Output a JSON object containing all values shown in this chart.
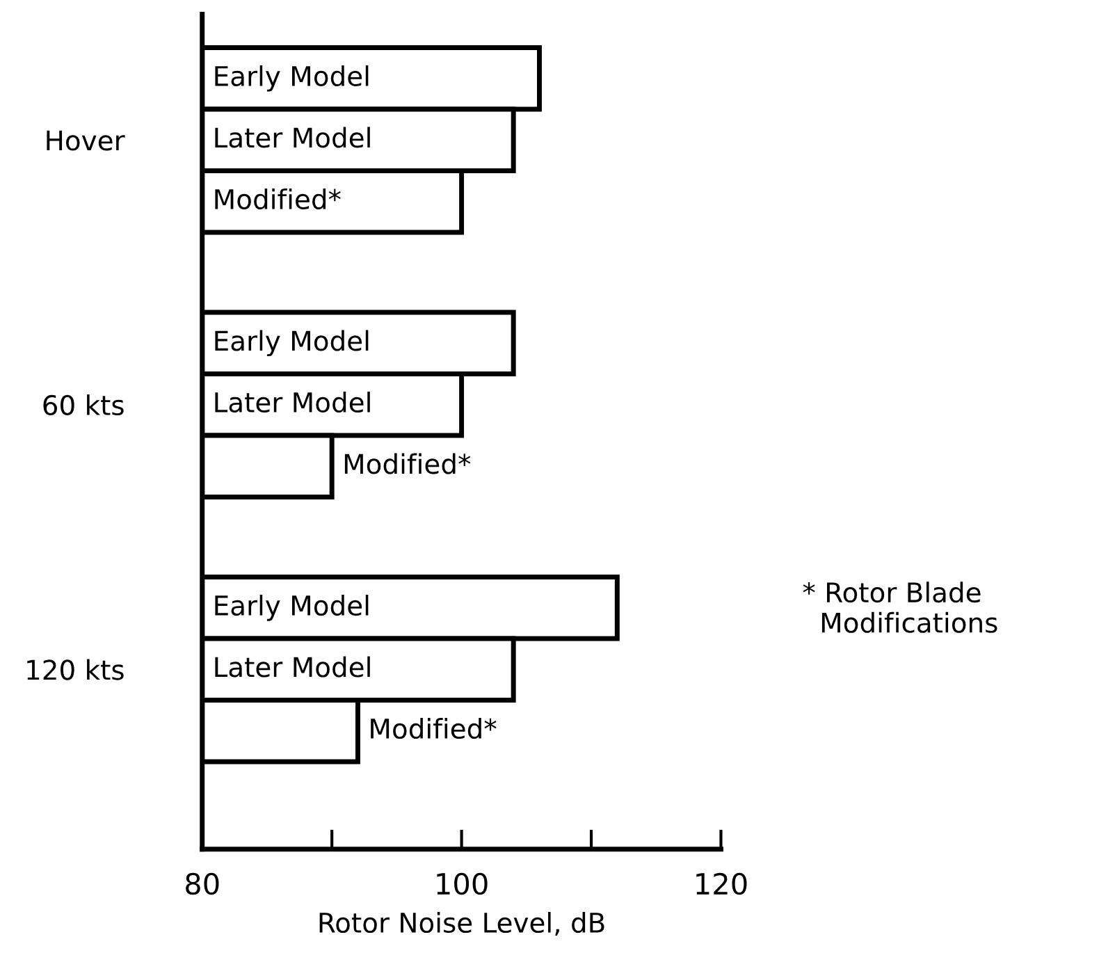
{
  "chart_data": {
    "type": "bar",
    "orientation": "horizontal",
    "categories": [
      "Hover",
      "60 kts",
      "120 kts"
    ],
    "series": [
      {
        "name": "Early Model",
        "color": "#ffffff",
        "values": [
          106,
          104,
          112
        ]
      },
      {
        "name": "Later Model",
        "color": "#ffffff",
        "values": [
          104,
          100,
          104
        ]
      },
      {
        "name": "Modified*",
        "color": "#ffffff",
        "values": [
          100,
          90,
          92
        ]
      }
    ],
    "xlabel": "Rotor Noise Level, dB",
    "xlim": [
      80,
      120
    ],
    "xticks": [
      80,
      {
        "value": 90,
        "label": null
      },
      100,
      {
        "value": 110,
        "label": null
      },
      120
    ],
    "annotations": [
      "* Rotor Blade\n  Modifications"
    ],
    "grid": false,
    "legend": false
  }
}
